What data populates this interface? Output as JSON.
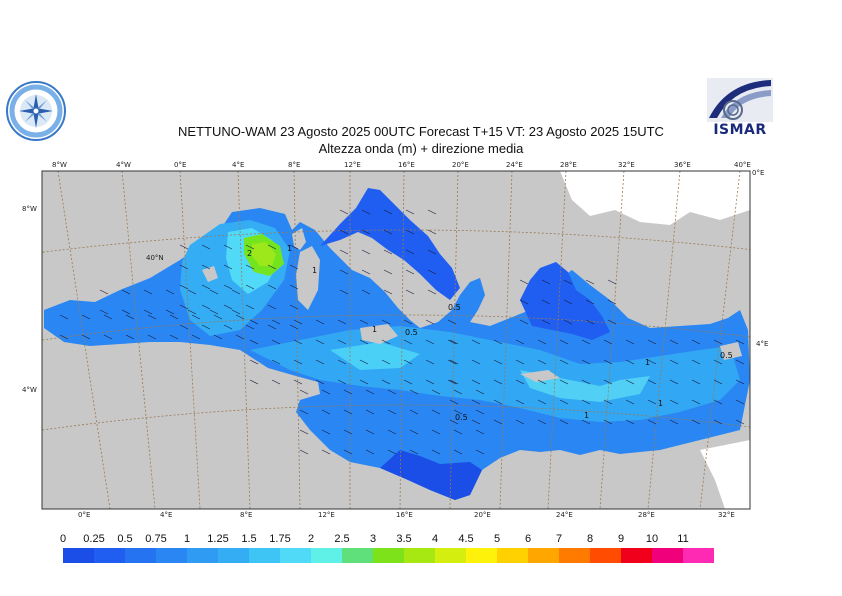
{
  "header": {
    "title_line1": "NETTUNO-WAM  23   Agosto  2025 00UTC Forecast T+15 VT: 23   Agosto  2025 15UTC",
    "title_line2": "Altezza onda (m) + direzione media",
    "logo_right_text": "ISMAR"
  },
  "colors": {
    "land": "#c8c8c8",
    "sea_dark": "#1f5ef0",
    "sea_medium": "#2a86f2",
    "sea_light": "#3fb4f5",
    "sea_cyan": "#5fe0f5",
    "wave_peak": "#74e41e",
    "graticule": "#9a7a52",
    "ice_white": "#ffffff"
  },
  "map": {
    "top_lon_labels": [
      "8°W",
      "4°W",
      "0°E",
      "4°E",
      "8°E",
      "12°E",
      "16°E",
      "20°E",
      "24°E",
      "28°E",
      "32°E",
      "36°E",
      "40°E"
    ],
    "bottom_lon_labels": [
      "0°E",
      "4°E",
      "8°E",
      "12°E",
      "16°E",
      "20°E",
      "24°E",
      "28°E",
      "32°E"
    ],
    "left_lat_labels": [
      "8°W",
      "4°W"
    ],
    "right_lat_labels": [
      "0°E",
      "4°E"
    ],
    "inner_labels": [
      "40°N"
    ],
    "contour_labels": [
      "2",
      "1",
      "1",
      "0.5",
      "0.5",
      "1",
      "0.5",
      "1",
      "1",
      "0.5",
      "1"
    ]
  },
  "legend": {
    "labels": [
      "0",
      "0.25",
      "0.5",
      "0.75",
      "1",
      "1.25",
      "1.5",
      "1.75",
      "2",
      "2.5",
      "3",
      "3.5",
      "4",
      "4.5",
      "5",
      "6",
      "7",
      "8",
      "9",
      "10",
      "11"
    ],
    "colors": [
      "#1a4ee6",
      "#1f5ef0",
      "#2673f2",
      "#2a86f2",
      "#2f9bf3",
      "#34adf5",
      "#3fc4f6",
      "#50daf7",
      "#5ff0e8",
      "#5fe07a",
      "#7de21a",
      "#a8e812",
      "#d4ee10",
      "#fff20a",
      "#ffd100",
      "#ffa600",
      "#ff7b00",
      "#ff4c00",
      "#f0001a",
      "#f0007a",
      "#ff2ab4",
      "#ff50d0"
    ]
  }
}
